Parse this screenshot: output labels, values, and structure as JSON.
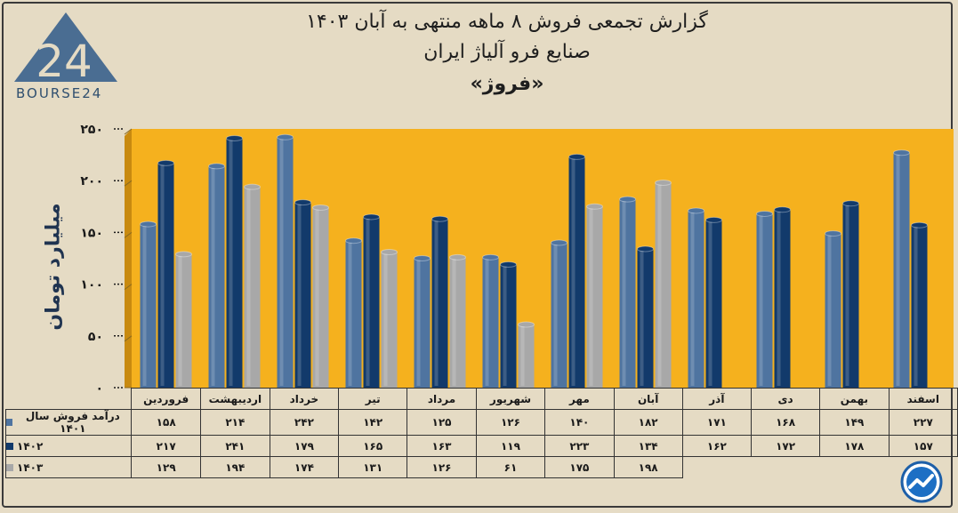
{
  "header": {
    "line1": "گزارش تجمعی فروش ۸ ماهه منتهی به آبان ۱۴۰۳",
    "line2": "صنایع فرو آلیاژ ایران",
    "line3": "«فروژ»"
  },
  "logo": {
    "text": "BOURSE24",
    "mark": "24"
  },
  "colors": {
    "background": "#e5dbc4",
    "plot": "#f5b11e",
    "s1401": "#4f74a0",
    "s1402": "#123a6b",
    "s1403": "#a8a8a8"
  },
  "chart_data": {
    "type": "bar",
    "ylabel": "میلیارد تومان",
    "ylim": [
      0,
      250
    ],
    "yticks": [
      "۰",
      "۵۰",
      "۱۰۰",
      "۱۵۰",
      "۲۰۰",
      "۲۵۰"
    ],
    "ytick_values": [
      0,
      50,
      100,
      150,
      200,
      250
    ],
    "categories": [
      "فروردین",
      "اردیبهشت",
      "خرداد",
      "تیر",
      "مرداد",
      "شهریور",
      "مهر",
      "آبان",
      "آذر",
      "دی",
      "بهمن",
      "اسفند"
    ],
    "series": [
      {
        "name": "درآمد فروش سال ۱۴۰۱",
        "values": [
          158,
          214,
          242,
          142,
          125,
          126,
          140,
          182,
          171,
          168,
          149,
          227
        ],
        "labels": [
          "۱۵۸",
          "۲۱۴",
          "۲۴۲",
          "۱۴۲",
          "۱۲۵",
          "۱۲۶",
          "۱۴۰",
          "۱۸۲",
          "۱۷۱",
          "۱۶۸",
          "۱۴۹",
          "۲۲۷"
        ]
      },
      {
        "name": "۱۴۰۲",
        "values": [
          217,
          241,
          179,
          165,
          163,
          119,
          223,
          134,
          162,
          172,
          178,
          157
        ],
        "labels": [
          "۲۱۷",
          "۲۴۱",
          "۱۷۹",
          "۱۶۵",
          "۱۶۳",
          "۱۱۹",
          "۲۲۳",
          "۱۳۴",
          "۱۶۲",
          "۱۷۲",
          "۱۷۸",
          "۱۵۷"
        ]
      },
      {
        "name": "۱۴۰۳",
        "values": [
          129,
          194,
          174,
          131,
          126,
          61,
          175,
          198,
          null,
          null,
          null,
          null
        ],
        "labels": [
          "۱۲۹",
          "۱۹۴",
          "۱۷۴",
          "۱۳۱",
          "۱۲۶",
          "۶۱",
          "۱۷۵",
          "۱۹۸",
          "",
          "",
          "",
          ""
        ]
      }
    ]
  }
}
